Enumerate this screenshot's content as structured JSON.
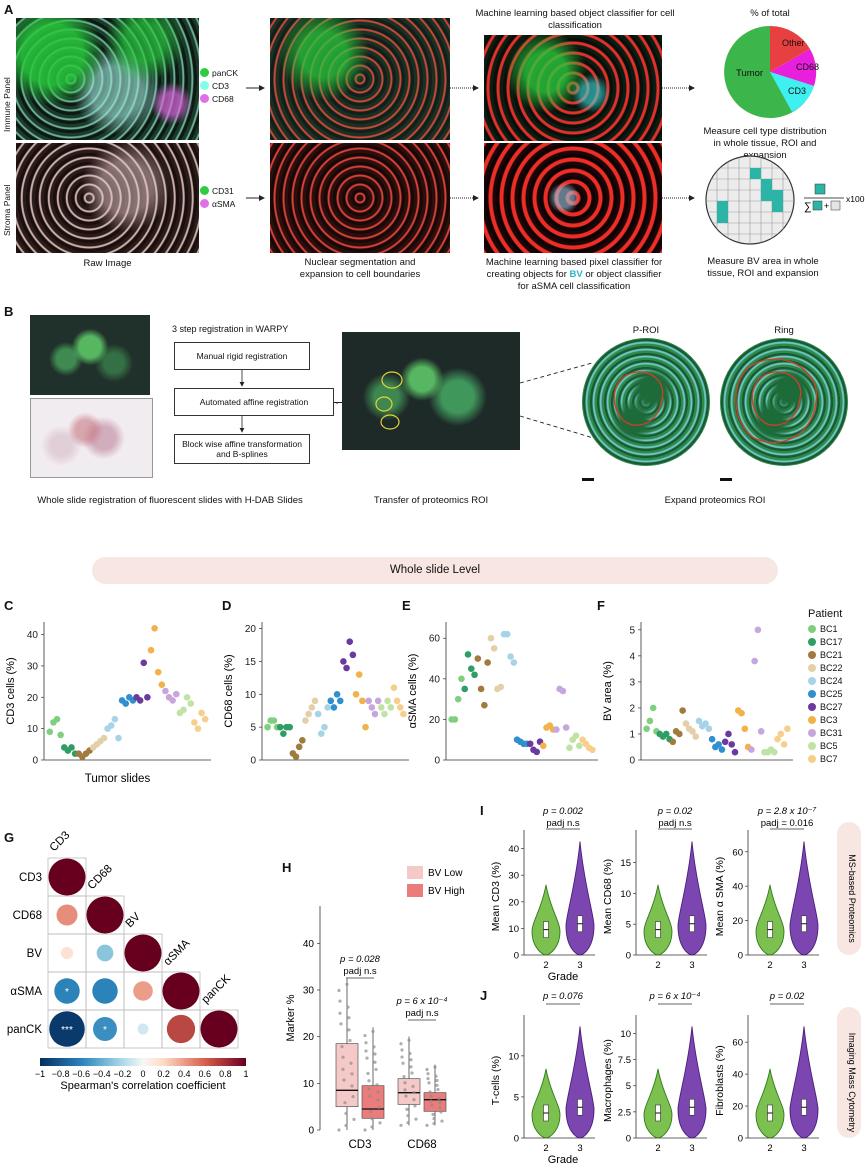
{
  "panel_labels": {
    "A": "A",
    "B": "B",
    "C": "C",
    "D": "D",
    "E": "E",
    "F": "F",
    "G": "G",
    "H": "H",
    "I": "I",
    "J": "J"
  },
  "panel_a": {
    "row_labels": [
      "Immune Panel",
      "Stroma Panel"
    ],
    "immune_legend": [
      {
        "label": "panCK",
        "color": "#2ecc40"
      },
      {
        "label": "CD3",
        "color": "#7fffe8"
      },
      {
        "label": "CD68",
        "color": "#e070e8"
      }
    ],
    "stroma_legend": [
      {
        "label": "CD31",
        "color": "#2ecc40"
      },
      {
        "label": "αSMA",
        "color": "#e070e8"
      }
    ],
    "caption_raw": "Raw Image",
    "caption_seg": "Nuclear segmentation and expansion to cell boundaries",
    "caption_ml_top": "Machine learning based object classifier for cell classification",
    "caption_ml_bottom_1": "Machine learning based pixel classifier for creating objects for",
    "caption_ml_bottom_bv": "BV",
    "caption_ml_bottom_2": "or object classifier for aSMA cell classification",
    "pie_title": "% of total",
    "pie_labels": [
      "Tumor",
      "Other",
      "CD68",
      "CD3"
    ],
    "pie_caption": "Measure cell type distribution in whole tissue, ROI and expansion",
    "grid_caption": "Measure BV area in whole tissue, ROI and expansion",
    "formula_x100": "x100",
    "formula_sum": "∑",
    "formula_plus": "+"
  },
  "panel_b": {
    "registration_title": "3 step registration in WARPY",
    "steps": [
      "Manual rigid registration",
      "Automated affine registration",
      "Block wise affine transformation and B-splines"
    ],
    "caption_left": "Whole slide registration of fluorescent slides with H-DAB Slides",
    "caption_mid": "Transfer of proteomics ROI",
    "caption_right": "Expand proteomics ROI",
    "roi_labels": [
      "P-ROI",
      "Ring"
    ]
  },
  "banner": "Whole slide Level",
  "chart_data": [
    {
      "type": "scatter",
      "panel": "C",
      "ylabel": "CD3 cells (%)",
      "xlabel": "Tumor slides",
      "yticks": [
        0,
        10,
        20,
        30,
        40
      ],
      "ylim": [
        0,
        44
      ],
      "groups": [
        {
          "name": "BC1",
          "values": [
            9,
            12,
            13,
            8
          ]
        },
        {
          "name": "BC17",
          "values": [
            4,
            3,
            4,
            2
          ]
        },
        {
          "name": "BC21",
          "values": [
            2,
            1,
            2,
            3
          ]
        },
        {
          "name": "BC22",
          "values": [
            4,
            5,
            6,
            7
          ]
        },
        {
          "name": "BC24",
          "values": [
            10,
            11,
            13,
            7
          ]
        },
        {
          "name": "BC25",
          "values": [
            19,
            18,
            20,
            19
          ]
        },
        {
          "name": "BC27",
          "values": [
            20,
            19,
            31,
            20
          ]
        },
        {
          "name": "BC3",
          "values": [
            35,
            42,
            28,
            24
          ]
        },
        {
          "name": "BC31",
          "values": [
            22,
            20,
            19,
            21
          ]
        },
        {
          "name": "BC5",
          "values": [
            15,
            16,
            20,
            18
          ]
        },
        {
          "name": "BC7",
          "values": [
            12,
            10,
            15,
            13
          ]
        }
      ]
    },
    {
      "type": "scatter",
      "panel": "D",
      "ylabel": "CD68 cells (%)",
      "yticks": [
        0,
        5,
        10,
        15,
        20
      ],
      "ylim": [
        0,
        21
      ],
      "groups": [
        {
          "name": "BC1",
          "values": [
            5,
            6,
            6,
            5
          ]
        },
        {
          "name": "BC17",
          "values": [
            5,
            4,
            5,
            5
          ]
        },
        {
          "name": "BC21",
          "values": [
            1,
            0.5,
            2,
            3
          ]
        },
        {
          "name": "BC22",
          "values": [
            6,
            7,
            8,
            9
          ]
        },
        {
          "name": "BC24",
          "values": [
            7,
            4,
            5,
            8
          ]
        },
        {
          "name": "BC25",
          "values": [
            9,
            8,
            10,
            9
          ]
        },
        {
          "name": "BC27",
          "values": [
            15,
            14,
            18,
            16
          ]
        },
        {
          "name": "BC3",
          "values": [
            10,
            13,
            9,
            5
          ]
        },
        {
          "name": "BC31",
          "values": [
            9,
            8,
            7,
            9
          ]
        },
        {
          "name": "BC5",
          "values": [
            8,
            7,
            9,
            8
          ]
        },
        {
          "name": "BC7",
          "values": [
            11,
            9,
            8,
            7
          ]
        }
      ]
    },
    {
      "type": "scatter",
      "panel": "E",
      "ylabel": "αSMA cells (%)",
      "yticks": [
        0,
        20,
        40,
        60
      ],
      "ylim": [
        0,
        68
      ],
      "groups": [
        {
          "name": "BC1",
          "values": [
            20,
            20,
            30,
            40
          ]
        },
        {
          "name": "BC17",
          "values": [
            35,
            52,
            45,
            42
          ]
        },
        {
          "name": "BC21",
          "values": [
            50,
            35,
            27,
            48
          ]
        },
        {
          "name": "BC22",
          "values": [
            60,
            55,
            35,
            36
          ]
        },
        {
          "name": "BC24",
          "values": [
            62,
            62,
            51,
            48
          ]
        },
        {
          "name": "BC25",
          "values": [
            10,
            9,
            8,
            8
          ]
        },
        {
          "name": "BC27",
          "values": [
            8,
            5,
            4,
            9
          ]
        },
        {
          "name": "BC3",
          "values": [
            7,
            16,
            17,
            15
          ]
        },
        {
          "name": "BC31",
          "values": [
            15,
            35,
            34,
            16
          ]
        },
        {
          "name": "BC5",
          "values": [
            6,
            10,
            12,
            7
          ]
        },
        {
          "name": "BC7",
          "values": [
            10,
            8,
            6,
            5
          ]
        }
      ]
    },
    {
      "type": "scatter",
      "panel": "F",
      "ylabel": "BV area (%)",
      "yticks": [
        0,
        1,
        2,
        3,
        4,
        5
      ],
      "ylim": [
        0,
        5.3
      ],
      "groups": [
        {
          "name": "BC1",
          "values": [
            1.2,
            1.5,
            2.0,
            1.1
          ]
        },
        {
          "name": "BC17",
          "values": [
            1.0,
            0.9,
            1.0,
            0.8
          ]
        },
        {
          "name": "BC21",
          "values": [
            0.7,
            1.1,
            1.0,
            1.9
          ]
        },
        {
          "name": "BC22",
          "values": [
            1.4,
            1.2,
            1.1,
            0.9
          ]
        },
        {
          "name": "BC24",
          "values": [
            1.5,
            1.3,
            1.4,
            1.2
          ]
        },
        {
          "name": "BC25",
          "values": [
            0.8,
            0.5,
            0.6,
            0.4
          ]
        },
        {
          "name": "BC27",
          "values": [
            0.7,
            1.0,
            0.6,
            0.3
          ]
        },
        {
          "name": "BC3",
          "values": [
            1.9,
            1.8,
            1.2,
            0.5
          ]
        },
        {
          "name": "BC31",
          "values": [
            0.4,
            3.8,
            5.0,
            1.1
          ]
        },
        {
          "name": "BC5",
          "values": [
            0.3,
            0.3,
            0.4,
            0.3
          ]
        },
        {
          "name": "BC7",
          "values": [
            0.8,
            1.0,
            0.6,
            1.2
          ]
        }
      ]
    },
    {
      "type": "heatmap",
      "panel": "G",
      "labels": [
        "CD3",
        "CD68",
        "BV",
        "αSMA",
        "panCK"
      ],
      "matrix": [
        [
          1.0
        ],
        [
          0.45,
          1.0
        ],
        [
          0.15,
          -0.3,
          1.0
        ],
        [
          -0.6,
          -0.6,
          0.4,
          1.0
        ],
        [
          -0.95,
          -0.55,
          -0.1,
          0.7,
          1.0
        ]
      ],
      "stars": [
        [],
        [],
        [],
        [
          "*",
          "",
          "",
          ""
        ],
        [
          "***",
          "*",
          "",
          "",
          ""
        ]
      ],
      "colorbar_ticks": [
        "−1",
        "−0.8",
        "−0.6",
        "−0.4",
        "−0.2",
        "0",
        "0.2",
        "0.4",
        "0.6",
        "0.8",
        "1"
      ],
      "colorbar_label": "Spearman's correlation coefficient"
    },
    {
      "type": "box",
      "panel": "H",
      "ylabel": "Marker %",
      "yticks": [
        0,
        10,
        20,
        30,
        40
      ],
      "ylim": [
        0,
        48
      ],
      "categories": [
        "CD3",
        "CD68"
      ],
      "series": [
        {
          "name": "BV Low",
          "color": "#f6c9c9",
          "boxes": [
            {
              "q1": 5,
              "median": 8.5,
              "q3": 18.5,
              "lo": 0,
              "hi": 32.5
            },
            {
              "q1": 5.5,
              "median": 8,
              "q3": 11,
              "lo": 1,
              "hi": 20
            }
          ]
        },
        {
          "name": "BV High",
          "color": "#ec7b7b",
          "boxes": [
            {
              "q1": 2.5,
              "median": 4.5,
              "q3": 9.5,
              "lo": 0,
              "hi": 22
            },
            {
              "q1": 4,
              "median": 6.5,
              "q3": 8,
              "lo": 1,
              "hi": 14
            }
          ]
        }
      ],
      "annotations": [
        {
          "p": "p = 0.028",
          "padj": "n.s"
        },
        {
          "p": "p = 6 x 10⁻⁴",
          "padj": "n.s"
        }
      ]
    },
    {
      "type": "violin",
      "panel": "I",
      "side_label": "MS-based Proteomics",
      "xlabel": "Grade",
      "plots": [
        {
          "ylabel": "Mean CD3 (%)",
          "yticks": [
            0,
            10,
            20,
            30,
            40
          ],
          "ylim": [
            0,
            44
          ],
          "categories": [
            "2",
            "3"
          ],
          "p": "p = 0.002",
          "padj": "n.s"
        },
        {
          "ylabel": "Mean CD68 (%)",
          "yticks": [
            0,
            5,
            10,
            15
          ],
          "ylim": [
            0,
            19
          ],
          "categories": [
            "2",
            "3"
          ],
          "p": "p = 0.02",
          "padj": "n.s"
        },
        {
          "ylabel": "Mean α SMA (%)",
          "yticks": [
            0,
            20,
            40,
            60
          ],
          "ylim": [
            0,
            68
          ],
          "categories": [
            "2",
            "3"
          ],
          "p": "p = 2.8 x 10⁻⁷",
          "padj": "= 0.016"
        }
      ]
    },
    {
      "type": "violin",
      "panel": "J",
      "side_label": "Imaging Mass Cytometry",
      "xlabel": "Grade",
      "plots": [
        {
          "ylabel": "T-cells (%)",
          "yticks": [
            0,
            5,
            10
          ],
          "ylim": [
            0,
            14
          ],
          "categories": [
            "2",
            "3"
          ],
          "p": "p = 0.076",
          "padj": ""
        },
        {
          "ylabel": "Macrophages (%)",
          "yticks": [
            0.0,
            2.5,
            5.0,
            7.5,
            10.0
          ],
          "ylim": [
            0,
            11
          ],
          "categories": [
            "2",
            "3"
          ],
          "p": "p = 6 x 10⁻⁴",
          "padj": ""
        },
        {
          "ylabel": "Fibroblasts (%)",
          "yticks": [
            0,
            20,
            40,
            60
          ],
          "ylim": [
            0,
            72
          ],
          "categories": [
            "2",
            "3"
          ],
          "p": "p = 0.02",
          "padj": ""
        }
      ]
    }
  ],
  "legend": {
    "title": "Patient",
    "items": [
      {
        "name": "BC1",
        "color": "#7fcf7f"
      },
      {
        "name": "BC17",
        "color": "#2e9e64"
      },
      {
        "name": "BC21",
        "color": "#a07a3e"
      },
      {
        "name": "BC22",
        "color": "#e3cfa8"
      },
      {
        "name": "BC24",
        "color": "#a7d3e6"
      },
      {
        "name": "BC25",
        "color": "#2f8fcf"
      },
      {
        "name": "BC27",
        "color": "#6b3a9e"
      },
      {
        "name": "BC3",
        "color": "#f2b24a"
      },
      {
        "name": "BC31",
        "color": "#c6a6dc"
      },
      {
        "name": "BC5",
        "color": "#bfe3a4"
      },
      {
        "name": "BC7",
        "color": "#f6cf8a"
      }
    ]
  },
  "colors": {
    "grade2": "#7cc04f",
    "grade2_stroke": "#2f7a1e",
    "grade3": "#7b46b0",
    "grade3_stroke": "#4a1f7a",
    "banner_bg": "#f8e6e3"
  }
}
